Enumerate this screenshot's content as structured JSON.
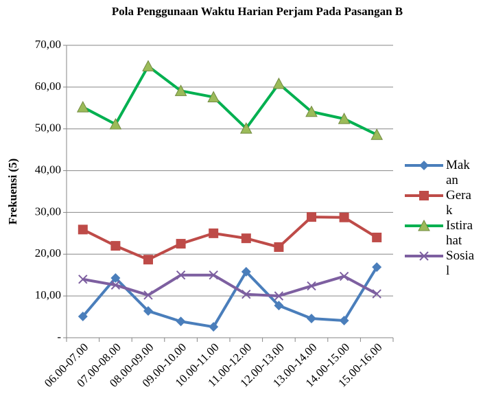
{
  "chart_data": {
    "type": "line",
    "title": "Pola Penggunaan Waktu Harian Perjam Pada Pasangan B",
    "y_label": "Frekuensi (5)",
    "categories": [
      "06.00-07.00",
      "07.00-08.00",
      "08.00-09.00",
      "09.00-10.00",
      "10.00-11.00",
      "11.00-12.00",
      "12.00-13.00",
      "13.00-14.00",
      "14.00-15.00",
      "15.00-16.00"
    ],
    "series": [
      {
        "name": "Makan",
        "color": "#4a7ebb",
        "marker": "diamond",
        "values": [
          5.1,
          14.3,
          6.4,
          3.9,
          2.6,
          15.8,
          7.7,
          4.6,
          4.1,
          16.9
        ]
      },
      {
        "name": "Gerak",
        "color": "#be4b48",
        "marker": "square",
        "values": [
          25.9,
          22,
          18.7,
          22.5,
          25,
          23.8,
          21.7,
          28.9,
          28.8,
          24
        ]
      },
      {
        "name": "Istirahat",
        "color": "#00b050",
        "marker": "triangle",
        "marker_color": "#9bbb59",
        "values": [
          55.2,
          51.1,
          65,
          59.1,
          57.6,
          50.1,
          60.8,
          54.1,
          52.4,
          48.6
        ]
      },
      {
        "name": "Sosial",
        "color": "#7d5fa0",
        "marker": "x",
        "values": [
          14,
          12.6,
          10.2,
          15,
          15,
          10.4,
          10,
          12.4,
          14.7,
          10.5
        ]
      }
    ],
    "ylim": [
      0,
      70
    ],
    "yticks": [
      {
        "value": 0,
        "label": "-"
      },
      {
        "value": 10,
        "label": "10,00"
      },
      {
        "value": 20,
        "label": "20,00"
      },
      {
        "value": 30,
        "label": "30,00"
      },
      {
        "value": 40,
        "label": "40,00"
      },
      {
        "value": 50,
        "label": "50,00"
      },
      {
        "value": 60,
        "label": "60,00"
      },
      {
        "value": 70,
        "label": "70,00"
      }
    ],
    "grid": true,
    "legend": "right"
  }
}
